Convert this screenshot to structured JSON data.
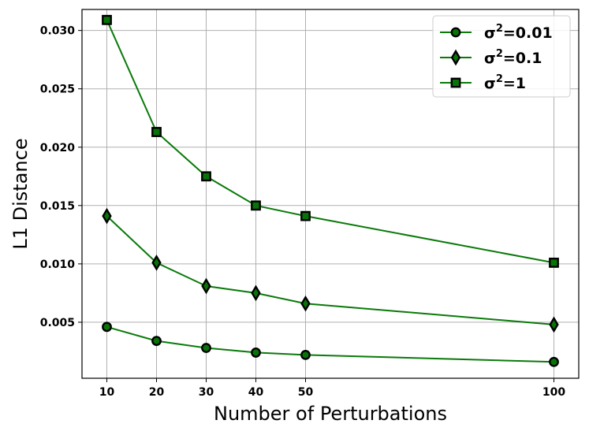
{
  "chart_data": {
    "type": "line",
    "xlabel": "Number of Perturbations",
    "ylabel": "L1 Distance",
    "x": [
      10,
      20,
      30,
      40,
      50,
      100
    ],
    "x_ticks": [
      "10",
      "20",
      "30",
      "40",
      "50",
      "100"
    ],
    "y_ticks": [
      "0.005",
      "0.010",
      "0.015",
      "0.020",
      "0.025",
      "0.030"
    ],
    "xlim": [
      5,
      105
    ],
    "ylim": [
      0.0002,
      0.0318
    ],
    "grid": true,
    "legend_position": "top-right",
    "line_color": "#0a7a0a",
    "marker_fill": "#087308",
    "marker_edge": "#000000",
    "series": [
      {
        "name": "σ²=0.01",
        "name_base": "σ",
        "name_sup": "2",
        "name_tail": "=0.01",
        "marker": "circle",
        "values": [
          0.0046,
          0.0034,
          0.0028,
          0.0024,
          0.0022,
          0.0016
        ]
      },
      {
        "name": "σ²=0.1",
        "name_base": "σ",
        "name_sup": "2",
        "name_tail": "=0.1",
        "marker": "diamond",
        "values": [
          0.0141,
          0.0101,
          0.0081,
          0.0075,
          0.0066,
          0.0048
        ]
      },
      {
        "name": "σ²=1",
        "name_base": "σ",
        "name_sup": "2",
        "name_tail": "=1",
        "marker": "square",
        "values": [
          0.0309,
          0.0213,
          0.0175,
          0.015,
          0.0141,
          0.0101
        ]
      }
    ]
  }
}
